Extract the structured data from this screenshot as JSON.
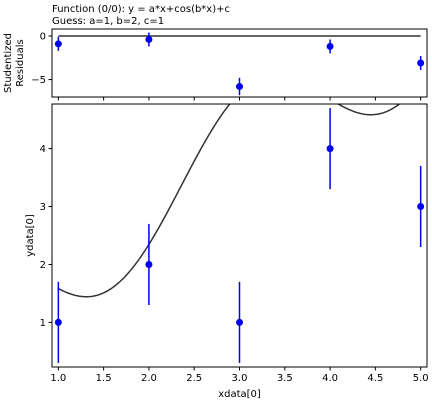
{
  "figure": {
    "title_line1": "Function (0/0): y = a*x+cos(b*x)+c",
    "title_line2": "Guess: a=1, b=2, c=1"
  },
  "chart_data": [
    {
      "type": "scatter",
      "panel": "residuals",
      "ylabel_line1": "Studentized",
      "ylabel_line2": "Residuals",
      "xlim": [
        0.93,
        5.07
      ],
      "ylim": [
        -7.0,
        0.8
      ],
      "yticks": [
        0,
        -5
      ],
      "ytick_labels": [
        "0",
        "−5"
      ],
      "grid": false,
      "baseline": 0,
      "series": [
        {
          "color": "#0000ee",
          "x": [
            1,
            2,
            3,
            4,
            5
          ],
          "y": [
            -0.9,
            -0.4,
            -5.8,
            -1.2,
            -3.1
          ],
          "err": [
            0.8,
            0.8,
            1.0,
            0.8,
            0.8
          ]
        }
      ]
    },
    {
      "type": "scatter",
      "panel": "data",
      "xlabel": "xdata[0]",
      "ylabel": "ydata[0]",
      "xlim": [
        0.93,
        5.07
      ],
      "ylim": [
        0.23,
        4.77
      ],
      "xticks": [
        1.0,
        1.5,
        2.0,
        2.5,
        3.0,
        3.5,
        4.0,
        4.5,
        5.0
      ],
      "xtick_labels": [
        "1.0",
        "1.5",
        "2.0",
        "2.5",
        "3.0",
        "3.5",
        "4.0",
        "4.5",
        "5.0"
      ],
      "yticks": [
        1,
        2,
        3,
        4
      ],
      "ytick_labels": [
        "1",
        "2",
        "3",
        "4"
      ],
      "grid": false,
      "series": [
        {
          "color": "#0000ee",
          "x": [
            1,
            2,
            3,
            4,
            5
          ],
          "y": [
            1,
            2,
            1,
            4,
            3
          ],
          "err": [
            0.7,
            0.7,
            0.7,
            0.7,
            0.7
          ]
        }
      ],
      "model_curve": {
        "color": "#333333",
        "a": 1,
        "b": 2,
        "c": 1,
        "x_range": [
          1.0,
          5.0
        ]
      }
    }
  ]
}
